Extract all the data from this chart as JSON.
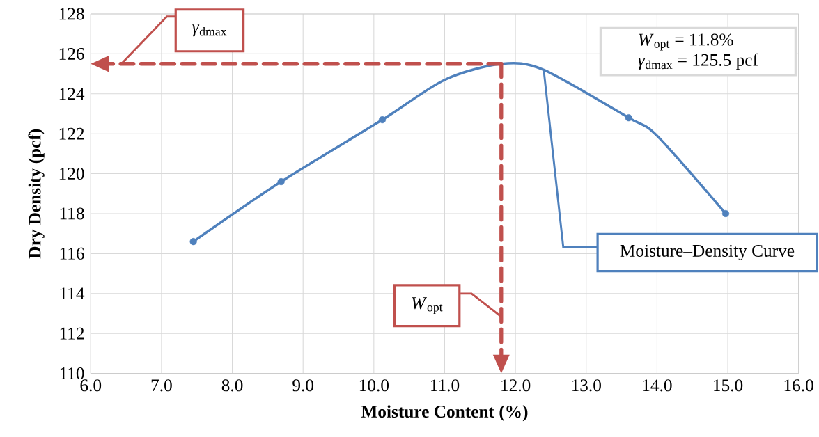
{
  "chart_data": {
    "type": "line",
    "xlabel": "Moisture Content (%)",
    "ylabel": "Dry Density (pcf)",
    "xlim": [
      6,
      16
    ],
    "ylim": [
      110,
      128
    ],
    "xticks": [
      {
        "value": 6,
        "label": "6.0"
      },
      {
        "value": 7,
        "label": "7.0"
      },
      {
        "value": 8,
        "label": "8.0"
      },
      {
        "value": 9,
        "label": "9.0"
      },
      {
        "value": 10,
        "label": "10.0"
      },
      {
        "value": 11,
        "label": "11.0"
      },
      {
        "value": 12,
        "label": "12.0"
      },
      {
        "value": 13,
        "label": "13.0"
      },
      {
        "value": 14,
        "label": "14.0"
      },
      {
        "value": 15,
        "label": "15.0"
      },
      {
        "value": 16,
        "label": "16.0"
      }
    ],
    "yticks": [
      110,
      112,
      114,
      116,
      118,
      120,
      122,
      124,
      126,
      128
    ],
    "grid": true,
    "legend": false,
    "series": [
      {
        "name": "Moisture–Density Curve",
        "color": "#4f81bd",
        "marker": "none",
        "x": [
          7.45,
          8.69,
          10.12,
          11.0,
          11.8,
          12.4,
          13.6,
          14.0,
          14.97
        ],
        "values": [
          116.6,
          119.6,
          122.7,
          124.7,
          125.5,
          125.2,
          122.8,
          121.9,
          118.0
        ]
      },
      {
        "type": "scatter",
        "color": "#4f81bd",
        "marker": "circle",
        "x": [
          7.45,
          8.69,
          10.12,
          13.6,
          14.97
        ],
        "values": [
          116.6,
          119.6,
          122.7,
          122.8,
          118.0
        ]
      }
    ],
    "ref_lines": [
      {
        "axis": "y",
        "value": 125.5,
        "label": "*γ*$_{dmax}$",
        "color": "#c0504d",
        "line_style": "dashed"
      },
      {
        "axis": "x",
        "value": 11.8,
        "label": "*W*$_{opt}$",
        "color": "#c0504d",
        "line_style": "dashed"
      }
    ],
    "annotations": [
      "*W*$_{opt}$ = 11.8%",
      "*γ*$_{dmax}$ = 125.5 pcf"
    ]
  }
}
